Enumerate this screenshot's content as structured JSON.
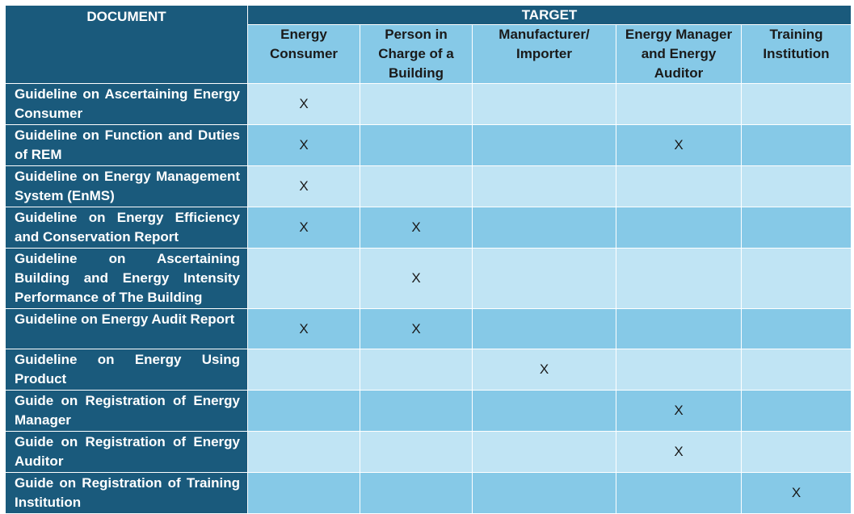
{
  "header": {
    "document": "DOCUMENT",
    "target": "TARGET",
    "columns": [
      "Energy Consumer",
      "Person in Charge of a Building",
      "Manufacturer/ Importer",
      "Energy Manager and Energy Auditor",
      "Training Institution"
    ]
  },
  "rows": [
    {
      "document": "Guideline on Ascertaining Energy Consumer",
      "marks": [
        "X",
        "",
        "",
        "",
        ""
      ]
    },
    {
      "document": "Guideline on Function and Duties of REM",
      "marks": [
        "X",
        "",
        "",
        "X",
        ""
      ]
    },
    {
      "document": "Guideline on Energy Management System (EnMS)",
      "marks": [
        "X",
        "",
        "",
        "",
        ""
      ]
    },
    {
      "document": "Guideline on Energy Efficiency and Conservation Report",
      "marks": [
        "X",
        "X",
        "",
        "",
        ""
      ]
    },
    {
      "document": "Guideline on Ascertaining Building and Energy Intensity Performance of The Building",
      "marks": [
        "",
        "X",
        "",
        "",
        ""
      ]
    },
    {
      "document": "Guideline on Energy Audit Report",
      "marks": [
        "X",
        "X",
        "",
        "",
        ""
      ]
    },
    {
      "document": "Guideline on Energy Using Product",
      "marks": [
        "",
        "",
        "X",
        "",
        ""
      ]
    },
    {
      "document": "Guide on Registration of Energy Manager",
      "marks": [
        "",
        "",
        "",
        "X",
        ""
      ]
    },
    {
      "document": "Guide on Registration of Energy Auditor",
      "marks": [
        "",
        "",
        "",
        "X",
        ""
      ]
    },
    {
      "document": "Guide on Registration of Training Institution",
      "marks": [
        "",
        "",
        "",
        "",
        "X"
      ]
    }
  ]
}
